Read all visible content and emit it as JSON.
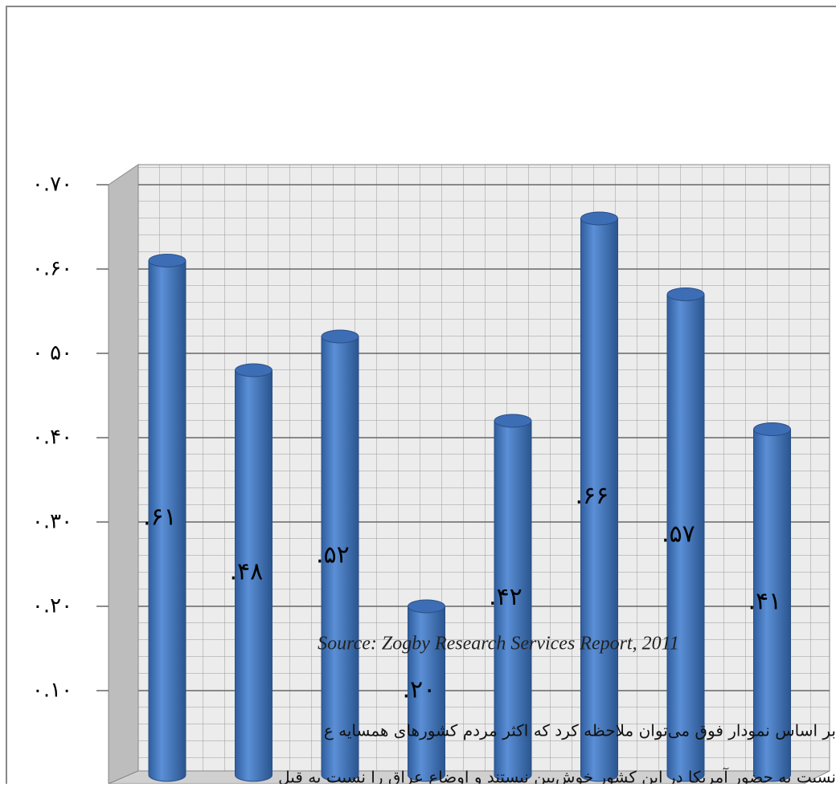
{
  "chart_data": {
    "type": "bar",
    "categories": [
      null,
      null,
      null,
      null,
      null,
      null,
      null,
      null
    ],
    "values": [
      0.61,
      0.48,
      0.52,
      0.2,
      0.42,
      0.66,
      0.57,
      0.41
    ],
    "value_labels": [
      ".۶۱",
      ".۴۸",
      ".۵۲",
      ".۲۰",
      ".۴۲",
      ".۶۶",
      ".۵۷",
      ".۴۱"
    ],
    "color": "#4a7cc4",
    "ylim": [
      0,
      0.72
    ],
    "yticks": [
      {
        "value": 0.1,
        "label": "۰.۱۰"
      },
      {
        "value": 0.2,
        "label": "۰.۲۰"
      },
      {
        "value": 0.3,
        "label": "۰.۳۰"
      },
      {
        "value": 0.4,
        "label": "۰.۴۰"
      },
      {
        "value": 0.5,
        "label": "۰ ۵۰"
      },
      {
        "value": 0.6,
        "label": "۰.۶۰"
      },
      {
        "value": 0.7,
        "label": "۰.۷۰"
      }
    ],
    "grid": true,
    "source": "Source: Zogby Research Services Report, 2011",
    "text_lines": [
      "بر اساس نمودار فوق می‌توان ملاحظه کرد که اکثر مردم کشورهای همسایه ع",
      "نسبت به حضور آمریکا در این کشور خوش‌بین نیستند و اوضاع عراق را نسبت به قبل"
    ]
  }
}
